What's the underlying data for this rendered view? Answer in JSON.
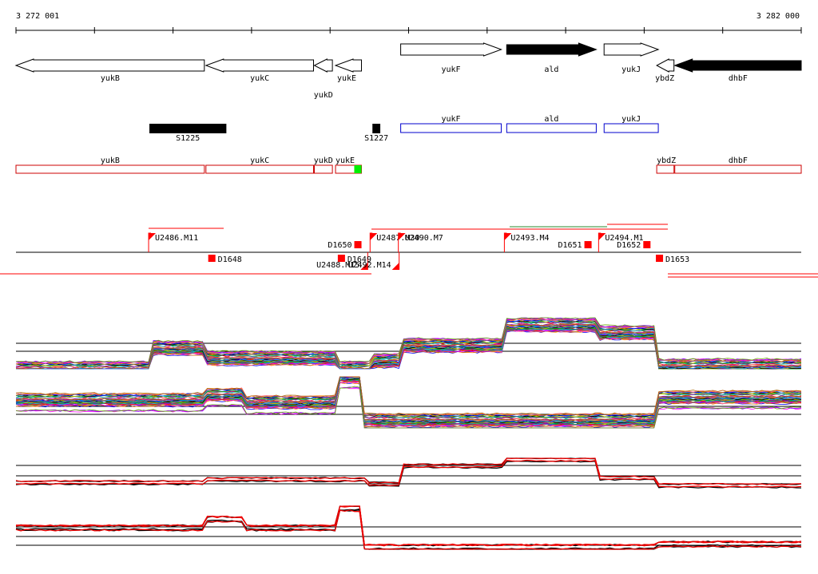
{
  "axis": {
    "start_label": "3 272 001",
    "end_label": "3 282 000",
    "start": 3272001,
    "end": 3282000
  },
  "genes": [
    {
      "label": "yukB",
      "start": 3272001,
      "end": 3274400,
      "strand": "-",
      "fill": "white"
    },
    {
      "label": "yukC",
      "start": 3274420,
      "end": 3275790,
      "strand": "-",
      "fill": "white"
    },
    {
      "label": "yukD",
      "start": 3275800,
      "end": 3276030,
      "strand": "-",
      "fill": "white",
      "label_row": 2
    },
    {
      "label": "yukE",
      "start": 3276070,
      "end": 3276400,
      "strand": "-",
      "fill": "white"
    },
    {
      "label": "yukF",
      "start": 3276900,
      "end": 3278180,
      "strand": "+",
      "fill": "white"
    },
    {
      "label": "ald",
      "start": 3278250,
      "end": 3279390,
      "strand": "+",
      "fill": "black"
    },
    {
      "label": "yukJ",
      "start": 3279490,
      "end": 3280180,
      "strand": "+",
      "fill": "white"
    },
    {
      "label": "ybdZ",
      "start": 3280160,
      "end": 3280380,
      "strand": "-",
      "fill": "white"
    },
    {
      "label": "dhbF",
      "start": 3280390,
      "end": 3282000,
      "strand": "-",
      "fill": "black"
    }
  ],
  "s_elements": [
    {
      "label": "S1225",
      "start": 3273700,
      "end": 3274680
    },
    {
      "label": "S1227",
      "start": 3276540,
      "end": 3276640
    }
  ],
  "blue_segments": [
    {
      "label": "yukF",
      "start": 3276900,
      "end": 3278180
    },
    {
      "label": "ald",
      "start": 3278250,
      "end": 3279390
    },
    {
      "label": "yukJ",
      "start": 3279490,
      "end": 3280180
    }
  ],
  "red_segments": [
    {
      "label": "yukB",
      "start": 3272001,
      "end": 3274400
    },
    {
      "label": "yukC",
      "start": 3274420,
      "end": 3275790
    },
    {
      "label": "yukD",
      "start": 3275800,
      "end": 3276030
    },
    {
      "label": "yukE",
      "start": 3276070,
      "end": 3276400,
      "marker": "green"
    },
    {
      "label": "ybdZ",
      "start": 3280160,
      "end": 3280380
    },
    {
      "label": "dhbF",
      "start": 3280390,
      "end": 3282000
    }
  ],
  "tss_upper": [
    {
      "label": "U2486.M11",
      "pos": 3273690
    },
    {
      "label": "U2487.M30",
      "pos": 3276510
    },
    {
      "label": "U2490.M7",
      "pos": 3276870
    },
    {
      "label": "U2493.M4",
      "pos": 3278220
    },
    {
      "label": "U2494.M1",
      "pos": 3279420
    }
  ],
  "tss_lower": [
    {
      "label": "U2488.M15",
      "pos": 3276480
    },
    {
      "label": "U2492.M14",
      "pos": 3276880
    }
  ],
  "terminators_upper": [
    {
      "label": "D1650",
      "pos": 3276360
    },
    {
      "label": "D1651",
      "pos": 3279290
    },
    {
      "label": "D1652",
      "pos": 3280040
    }
  ],
  "terminators_lower": [
    {
      "label": "D1648",
      "pos": 3274500
    },
    {
      "label": "D1649",
      "pos": 3276150
    },
    {
      "label": "D1653",
      "pos": 3280200
    }
  ],
  "colors": {
    "gene_outline": "#000000",
    "blue_segment": "#0000cc",
    "red_segment": "#cc0000",
    "marker_green": "#00ee00",
    "tss_red": "#ff0000",
    "profile_ref": "#000000"
  },
  "tracks": [
    {
      "levels": [
        {
          "from": 3272001,
          "to": 3273690,
          "value": 0.05
        },
        {
          "from": 3273690,
          "to": 3274380,
          "value": 0.45
        },
        {
          "from": 3274380,
          "to": 3276100,
          "value": 0.25
        },
        {
          "from": 3276100,
          "to": 3276550,
          "value": 0.05
        },
        {
          "from": 3276550,
          "to": 3276880,
          "value": 0.2
        },
        {
          "from": 3276880,
          "to": 3278220,
          "value": 0.5
        },
        {
          "from": 3278220,
          "to": 3279400,
          "value": 0.9
        },
        {
          "from": 3279400,
          "to": 3280180,
          "value": 0.75
        },
        {
          "from": 3280180,
          "to": 3282000,
          "value": 0.1
        }
      ]
    },
    {
      "levels": [
        {
          "from": 3272001,
          "to": 3274420,
          "value": 0.5
        },
        {
          "from": 3274420,
          "to": 3274900,
          "value": 0.6
        },
        {
          "from": 3274900,
          "to": 3276070,
          "value": 0.45
        },
        {
          "from": 3276070,
          "to": 3276430,
          "value": 0.95
        },
        {
          "from": 3276430,
          "to": 3280180,
          "value": 0.1
        },
        {
          "from": 3280180,
          "to": 3282000,
          "value": 0.55
        }
      ]
    },
    {
      "levels": [
        {
          "from": 3272001,
          "to": 3274400,
          "value": 0.2
        },
        {
          "from": 3274400,
          "to": 3276450,
          "value": 0.3
        },
        {
          "from": 3276450,
          "to": 3276880,
          "value": 0.15
        },
        {
          "from": 3276880,
          "to": 3278220,
          "value": 0.75
        },
        {
          "from": 3278220,
          "to": 3279400,
          "value": 0.95
        },
        {
          "from": 3279400,
          "to": 3280180,
          "value": 0.35
        },
        {
          "from": 3280180,
          "to": 3282000,
          "value": 0.1
        }
      ]
    },
    {
      "levels": [
        {
          "from": 3272001,
          "to": 3274420,
          "value": 0.5
        },
        {
          "from": 3274420,
          "to": 3274900,
          "value": 0.7
        },
        {
          "from": 3274900,
          "to": 3276070,
          "value": 0.5
        },
        {
          "from": 3276070,
          "to": 3276430,
          "value": 0.95
        },
        {
          "from": 3276430,
          "to": 3280180,
          "value": 0.05
        },
        {
          "from": 3280180,
          "to": 3282000,
          "value": 0.12
        }
      ]
    }
  ]
}
